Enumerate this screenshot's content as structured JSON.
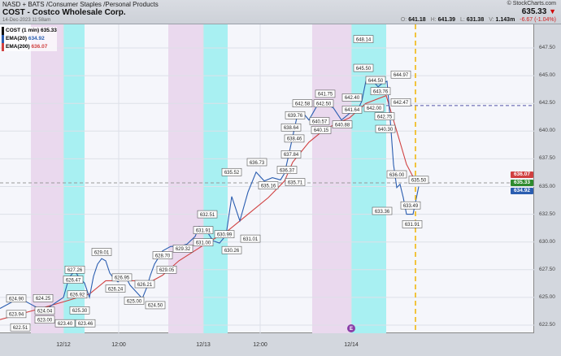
{
  "header": {
    "exchange": "NASD + BATS",
    "sector": "/Consumer Staples",
    "industry": "/Personal Products",
    "title": "COST - Costco Wholesale Corp.",
    "timestamp": "14-Dec-2023 11:58am",
    "brand": "© StockCharts.com",
    "last": "635.33",
    "last_arrow": "▼",
    "open_label": "O:",
    "open": "641.18",
    "high_label": "H:",
    "high": "641.39",
    "low_label": "L:",
    "low": "631.38",
    "vol_label": "V:",
    "volume": "1.143m",
    "change": "-6.67 (-1.04%)"
  },
  "legend": [
    {
      "label": "COST (1 min)",
      "value": "635.33",
      "color": "#111111"
    },
    {
      "label": "EMA(20)",
      "value": "634.92",
      "color": "#2a5db0"
    },
    {
      "label": "EMA(200)",
      "value": "636.07",
      "color": "#d04040"
    }
  ],
  "chart_data": {
    "type": "line",
    "ylim": [
      621.5,
      649.5
    ],
    "xlim": [
      0,
      657
    ],
    "yticks": [
      "622.50",
      "625.00",
      "627.50",
      "630.00",
      "632.50",
      "635.00",
      "637.50",
      "640.00",
      "642.50",
      "645.00",
      "647.50"
    ],
    "ytick_values": [
      622.5,
      625,
      627.5,
      630,
      632.5,
      635,
      637.5,
      640,
      642.5,
      645,
      647.5
    ],
    "xticks": [
      {
        "t": 78,
        "label": "12/12"
      },
      {
        "t": 146,
        "label": "12:00"
      },
      {
        "t": 250,
        "label": "12/13"
      },
      {
        "t": 320,
        "label": "12:00"
      },
      {
        "t": 432,
        "label": "12/14"
      }
    ],
    "sessions": [
      {
        "from": 38,
        "to": 78,
        "kind": "pre"
      },
      {
        "from": 78,
        "to": 104,
        "kind": "open"
      },
      {
        "from": 207,
        "to": 250,
        "kind": "pre"
      },
      {
        "from": 250,
        "to": 280,
        "kind": "open"
      },
      {
        "from": 384,
        "to": 432,
        "kind": "pre"
      },
      {
        "from": 432,
        "to": 475,
        "kind": "open"
      }
    ],
    "series": [
      {
        "name": "COST (1 min)",
        "color": "#2a5db0",
        "t": [
          0,
          10,
          20,
          30,
          40,
          50,
          60,
          70,
          78,
          85,
          92,
          98,
          104,
          110,
          115,
          120,
          125,
          130,
          135,
          140,
          145,
          150,
          155,
          160,
          170,
          175,
          180,
          185,
          190,
          195,
          200,
          210,
          220,
          230,
          240,
          245,
          250,
          255,
          262,
          270,
          278,
          285,
          295,
          305,
          315,
          325,
          335,
          345,
          350,
          355,
          360,
          365,
          372,
          380,
          390,
          400,
          410,
          420,
          430,
          440,
          445,
          450,
          455,
          460,
          465,
          470,
          476,
          480,
          484,
          488,
          492,
          496,
          500,
          508,
          515
        ],
        "values": [
          624.0,
          624.4,
          624.8,
          624.7,
          624.3,
          623.9,
          624.1,
          624.6,
          625.0,
          626.8,
          627.4,
          626.7,
          626.3,
          625.0,
          626.9,
          628.0,
          628.5,
          628.3,
          627.2,
          626.7,
          626.4,
          626.7,
          626.8,
          626.1,
          625.3,
          624.9,
          625.8,
          627.0,
          628.0,
          628.6,
          629.2,
          629.6,
          629.6,
          629.8,
          630.5,
          631.4,
          631.2,
          630.9,
          630.1,
          629.9,
          630.6,
          634.1,
          631.9,
          634.5,
          636.3,
          635.5,
          635.8,
          635.6,
          636.2,
          637.8,
          639.5,
          641.2,
          641.7,
          641.0,
          642.3,
          642.4,
          642.1,
          641.0,
          641.6,
          641.9,
          642.7,
          644.5,
          644.9,
          644.4,
          644.0,
          644.3,
          644.5,
          641.0,
          637.0,
          634.9,
          635.2,
          634.0,
          632.5,
          632.5,
          635.0
        ]
      },
      {
        "name": "EMA(200)",
        "color": "#d04040",
        "t": [
          0,
          40,
          78,
          110,
          130,
          170,
          180,
          200,
          220,
          250,
          280,
          300,
          330,
          350,
          360,
          380,
          400,
          430,
          450,
          475,
          490,
          500,
          510
        ],
        "values": [
          623.0,
          623.8,
          624.6,
          625.3,
          626.5,
          626.5,
          626.2,
          627.0,
          628.3,
          629.7,
          631.0,
          632.2,
          634.0,
          635.5,
          637.2,
          639.0,
          640.2,
          641.2,
          642.5,
          643.2,
          639.5,
          637.0,
          635.6
        ]
      }
    ],
    "data_labels": [
      {
        "t": 20,
        "v": 624.9,
        "text": "624.90"
      },
      {
        "t": 20,
        "v": 623.5,
        "text": "623.94"
      },
      {
        "t": 25,
        "v": 622.3,
        "text": "622.51"
      },
      {
        "t": 55,
        "v": 623.8,
        "text": "624.04"
      },
      {
        "t": 40,
        "v": 624.2,
        "text": "624.25"
      },
      {
        "t": 55,
        "v": 623.0,
        "text": "623.00"
      },
      {
        "t": 90,
        "v": 626.6,
        "text": "626.47"
      },
      {
        "t": 92,
        "v": 627.5,
        "text": "627.26"
      },
      {
        "t": 95,
        "v": 626.0,
        "text": "626.92"
      },
      {
        "t": 98,
        "v": 625.3,
        "text": "625.30"
      },
      {
        "t": 105,
        "v": 623.4,
        "text": "623.46"
      },
      {
        "t": 80,
        "v": 623.4,
        "text": "623.40"
      },
      {
        "t": 125,
        "v": 629.1,
        "text": "629.01"
      },
      {
        "t": 150,
        "v": 626.8,
        "text": "626.95"
      },
      {
        "t": 165,
        "v": 626.2,
        "text": "626.21"
      },
      {
        "t": 155,
        "v": 625.8,
        "text": "626.24"
      },
      {
        "t": 165,
        "v": 624.7,
        "text": "625.00"
      },
      {
        "t": 178,
        "v": 624.3,
        "text": "624.50"
      },
      {
        "t": 205,
        "v": 627.5,
        "text": "629.05"
      },
      {
        "t": 200,
        "v": 628.8,
        "text": "628.70"
      },
      {
        "t": 255,
        "v": 632.5,
        "text": "632.51"
      },
      {
        "t": 250,
        "v": 631.8,
        "text": "631.91"
      },
      {
        "t": 250,
        "v": 630.7,
        "text": "631.00"
      },
      {
        "t": 276,
        "v": 630.7,
        "text": "630.99"
      },
      {
        "t": 238,
        "v": 629.4,
        "text": "629.32"
      },
      {
        "t": 285,
        "v": 630.0,
        "text": "630.26"
      },
      {
        "t": 295,
        "v": 630.3,
        "text": "631.01"
      },
      {
        "t": 285,
        "v": 636.3,
        "text": "635.52"
      },
      {
        "t": 316,
        "v": 637.2,
        "text": "636.73"
      },
      {
        "t": 340,
        "v": 636.5,
        "text": "636.37"
      },
      {
        "t": 330,
        "v": 635.1,
        "text": "635.16"
      },
      {
        "t": 350,
        "v": 635.4,
        "text": "635.71"
      },
      {
        "t": 358,
        "v": 637.9,
        "text": "637.84"
      },
      {
        "t": 362,
        "v": 638.6,
        "text": "638.46"
      },
      {
        "t": 358,
        "v": 639.6,
        "text": "638.64"
      },
      {
        "t": 363,
        "v": 640.7,
        "text": "639.76"
      },
      {
        "t": 372,
        "v": 642.5,
        "text": "642.58"
      },
      {
        "t": 380,
        "v": 640.9,
        "text": "640.57"
      },
      {
        "t": 398,
        "v": 642.5,
        "text": "642.50"
      },
      {
        "t": 400,
        "v": 641.9,
        "text": "641.75"
      },
      {
        "t": 408,
        "v": 640.6,
        "text": "640.88"
      },
      {
        "t": 408,
        "v": 640.1,
        "text": "640.15"
      },
      {
        "t": 420,
        "v": 641.2,
        "text": "641.64"
      },
      {
        "t": 420,
        "v": 642.3,
        "text": "642.40"
      },
      {
        "t": 447,
        "v": 648.3,
        "text": "648.14"
      },
      {
        "t": 447,
        "v": 645.7,
        "text": "645.50"
      },
      {
        "t": 462,
        "v": 644.6,
        "text": "644.50"
      },
      {
        "t": 493,
        "v": 645.1,
        "text": "644.97"
      },
      {
        "t": 455,
        "v": 643.6,
        "text": "643.76"
      },
      {
        "t": 460,
        "v": 642.1,
        "text": "642.00"
      },
      {
        "t": 480,
        "v": 642.6,
        "text": "642.47"
      },
      {
        "t": 473,
        "v": 642.8,
        "text": "642.75"
      },
      {
        "t": 474,
        "v": 640.2,
        "text": "640.30"
      },
      {
        "t": 488,
        "v": 636.1,
        "text": "636.00"
      },
      {
        "t": 515,
        "v": 635.6,
        "text": "635.50"
      },
      {
        "t": 505,
        "v": 633.3,
        "text": "633.49"
      },
      {
        "t": 483,
        "v": 632.8,
        "text": "633.36"
      },
      {
        "t": 507,
        "v": 631.6,
        "text": "631.91"
      }
    ],
    "reference_lines": {
      "last_price": 635.33,
      "resistance": 642.3,
      "current_time": 511,
      "event_t": 432,
      "event_label": "E"
    },
    "axis_tags": [
      {
        "text": "636.07",
        "v": 636.07,
        "color": "#d04040"
      },
      {
        "text": "635.33",
        "v": 635.33,
        "color": "#2e8b2e"
      },
      {
        "text": "634.92",
        "v": 634.92,
        "color": "#2a5db0"
      }
    ]
  }
}
